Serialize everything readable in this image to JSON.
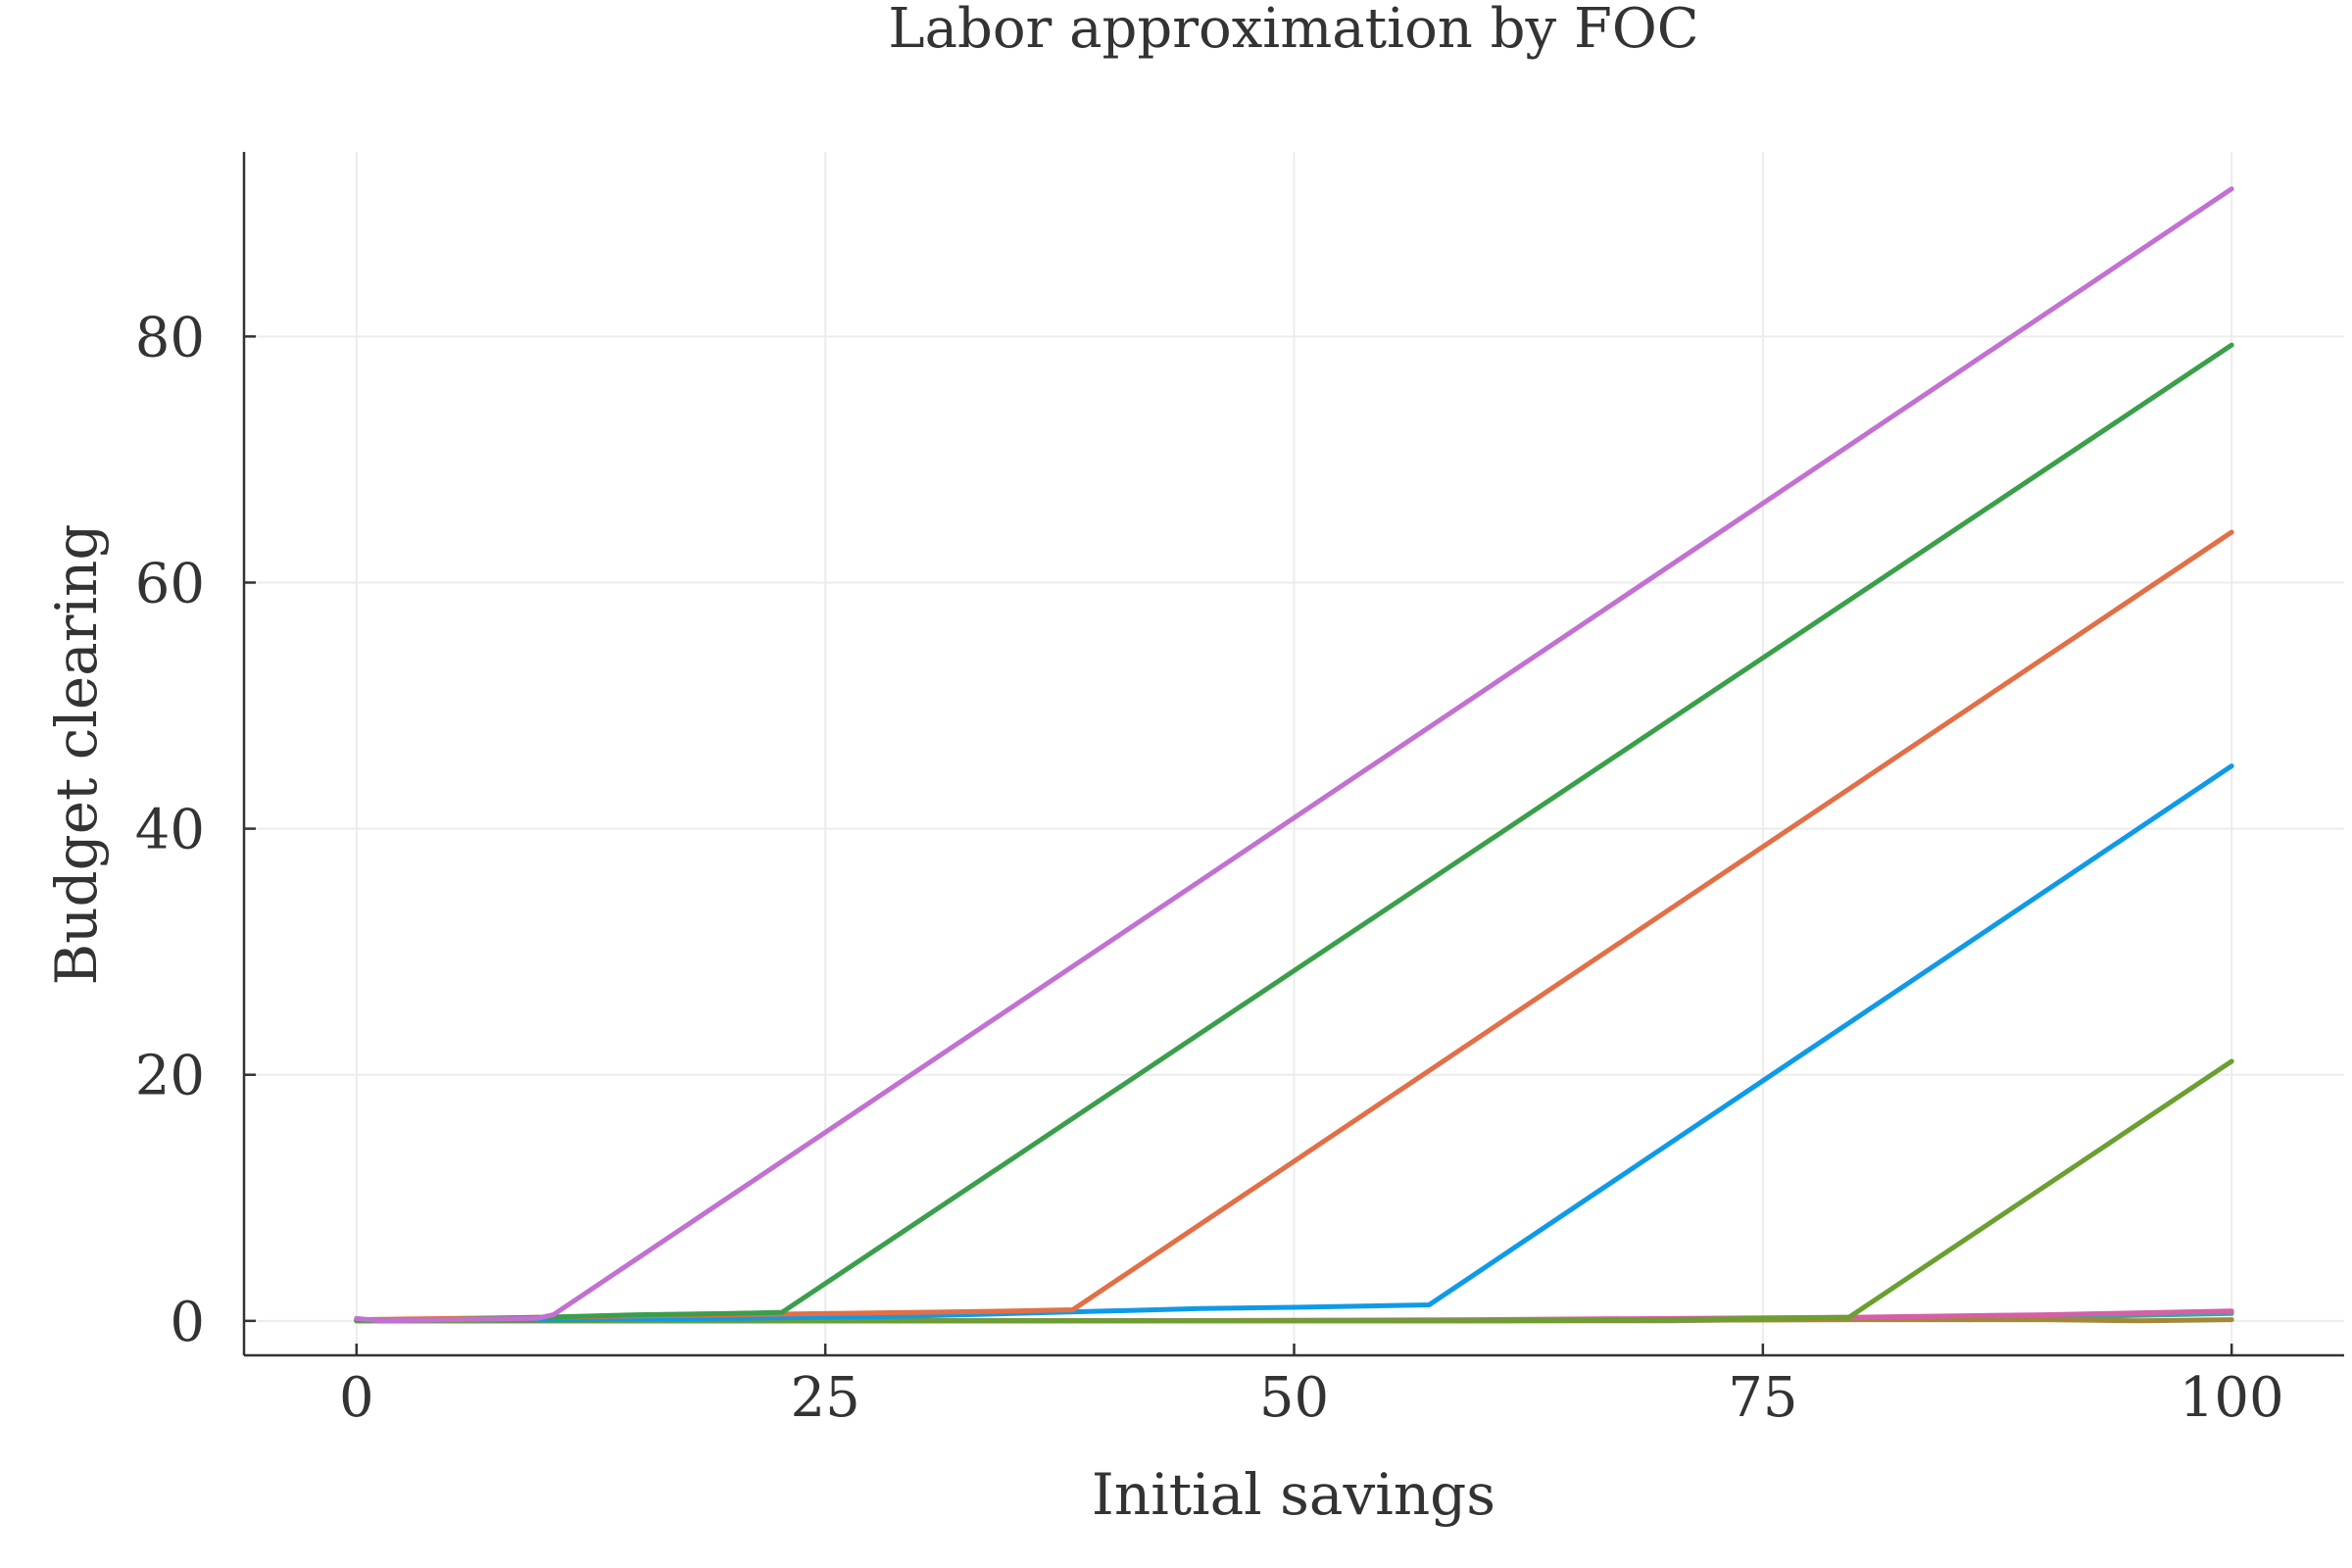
{
  "chart_data": {
    "type": "line",
    "title": "Labor approximation by FOC",
    "xlabel": "Initial savings",
    "ylabel": "Budget clearing",
    "xlim": [
      -6,
      106
    ],
    "ylim": [
      -2.8,
      95
    ],
    "xticks": [
      0,
      25,
      50,
      75,
      100
    ],
    "xtick_labels": [
      "0",
      "25",
      "50",
      "75",
      "100"
    ],
    "yticks": [
      0,
      20,
      40,
      60,
      80
    ],
    "ytick_labels": [
      "0",
      "20",
      "40",
      "60",
      "80"
    ],
    "grid": true,
    "legend": "none",
    "series": [
      {
        "color": "#c271d2",
        "x": [
          0,
          1.3,
          5,
          9.6,
          10.5,
          100
        ],
        "y": [
          0.2,
          0.0,
          0.1,
          0.2,
          0.5,
          92.0
        ]
      },
      {
        "color": "#3a9f4a",
        "x": [
          0,
          1.3,
          5,
          10,
          15,
          20,
          22.7,
          100
        ],
        "y": [
          0.1,
          0.0,
          0.1,
          0.3,
          0.5,
          0.6,
          0.7,
          79.3
        ]
      },
      {
        "color": "#e26f46",
        "x": [
          0,
          10,
          20,
          30,
          35,
          38.2,
          100
        ],
        "y": [
          0.1,
          0.3,
          0.5,
          0.7,
          0.8,
          0.9,
          64.1
        ]
      },
      {
        "color": "#0f9ae8",
        "x": [
          0,
          10,
          20,
          30,
          40,
          45,
          50,
          57.2,
          100
        ],
        "y": [
          0.1,
          0.1,
          0.2,
          0.4,
          0.8,
          1.0,
          1.1,
          1.3,
          45.1
        ]
      },
      {
        "color": "#6b9f2f",
        "x": [
          0,
          20,
          40,
          57,
          60,
          70,
          79.6,
          100
        ],
        "y": [
          0.0,
          0.0,
          0.0,
          0.0,
          0.0,
          0.1,
          0.3,
          21.1
        ]
      },
      {
        "color": "#d65fa8",
        "x": [
          0,
          20,
          40,
          60,
          80,
          90,
          100
        ],
        "y": [
          0.0,
          0.0,
          0.0,
          0.1,
          0.3,
          0.5,
          0.8
        ]
      },
      {
        "color": "#a5873a",
        "x": [
          0,
          20,
          40,
          60,
          80,
          90,
          95,
          100
        ],
        "y": [
          0.0,
          0.0,
          0.0,
          0.0,
          0.1,
          0.1,
          0.0,
          0.1
        ]
      },
      {
        "color": "#3aa89b",
        "x": [
          0,
          20,
          40,
          60,
          70,
          80,
          86,
          90,
          100
        ],
        "y": [
          0.0,
          0.0,
          0.0,
          0.0,
          0.0,
          0.2,
          0.1,
          0.3,
          0.6
        ]
      }
    ]
  }
}
